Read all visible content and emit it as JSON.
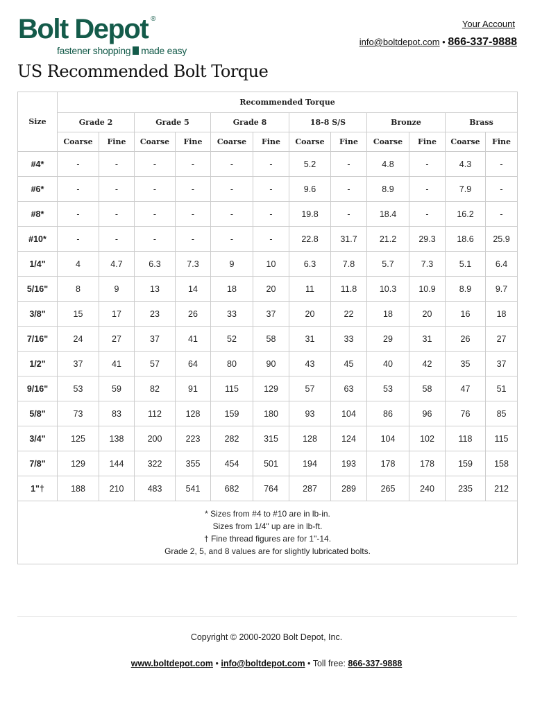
{
  "header": {
    "logo_name": "Bolt Depot",
    "logo_tagline_1": "fastener shopping",
    "logo_tagline_2": "made easy",
    "account": "Your Account",
    "email": "info@boltdepot.com",
    "sep": "•",
    "phone": "866-337-9888"
  },
  "title": "US Recommended Bolt Torque",
  "table": {
    "size_header": "Size",
    "group_header": "Recommended Torque",
    "materials": [
      "Grade 2",
      "Grade 5",
      "Grade 8",
      "18-8 S/S",
      "Bronze",
      "Brass"
    ],
    "sub": [
      "Coarse",
      "Fine"
    ],
    "rows": [
      {
        "size": "#4*",
        "v": [
          "-",
          "-",
          "-",
          "-",
          "-",
          "-",
          "5.2",
          "-",
          "4.8",
          "-",
          "4.3",
          "-"
        ]
      },
      {
        "size": "#6*",
        "v": [
          "-",
          "-",
          "-",
          "-",
          "-",
          "-",
          "9.6",
          "-",
          "8.9",
          "-",
          "7.9",
          "-"
        ]
      },
      {
        "size": "#8*",
        "v": [
          "-",
          "-",
          "-",
          "-",
          "-",
          "-",
          "19.8",
          "-",
          "18.4",
          "-",
          "16.2",
          "-"
        ]
      },
      {
        "size": "#10*",
        "v": [
          "-",
          "-",
          "-",
          "-",
          "-",
          "-",
          "22.8",
          "31.7",
          "21.2",
          "29.3",
          "18.6",
          "25.9"
        ]
      },
      {
        "size": "1/4\"",
        "v": [
          "4",
          "4.7",
          "6.3",
          "7.3",
          "9",
          "10",
          "6.3",
          "7.8",
          "5.7",
          "7.3",
          "5.1",
          "6.4"
        ]
      },
      {
        "size": "5/16\"",
        "v": [
          "8",
          "9",
          "13",
          "14",
          "18",
          "20",
          "11",
          "11.8",
          "10.3",
          "10.9",
          "8.9",
          "9.7"
        ]
      },
      {
        "size": "3/8\"",
        "v": [
          "15",
          "17",
          "23",
          "26",
          "33",
          "37",
          "20",
          "22",
          "18",
          "20",
          "16",
          "18"
        ]
      },
      {
        "size": "7/16\"",
        "v": [
          "24",
          "27",
          "37",
          "41",
          "52",
          "58",
          "31",
          "33",
          "29",
          "31",
          "26",
          "27"
        ]
      },
      {
        "size": "1/2\"",
        "v": [
          "37",
          "41",
          "57",
          "64",
          "80",
          "90",
          "43",
          "45",
          "40",
          "42",
          "35",
          "37"
        ]
      },
      {
        "size": "9/16\"",
        "v": [
          "53",
          "59",
          "82",
          "91",
          "115",
          "129",
          "57",
          "63",
          "53",
          "58",
          "47",
          "51"
        ]
      },
      {
        "size": "5/8\"",
        "v": [
          "73",
          "83",
          "112",
          "128",
          "159",
          "180",
          "93",
          "104",
          "86",
          "96",
          "76",
          "85"
        ]
      },
      {
        "size": "3/4\"",
        "v": [
          "125",
          "138",
          "200",
          "223",
          "282",
          "315",
          "128",
          "124",
          "104",
          "102",
          "118",
          "115"
        ]
      },
      {
        "size": "7/8\"",
        "v": [
          "129",
          "144",
          "322",
          "355",
          "454",
          "501",
          "194",
          "193",
          "178",
          "178",
          "159",
          "158"
        ]
      },
      {
        "size": "1\"†",
        "v": [
          "188",
          "210",
          "483",
          "541",
          "682",
          "764",
          "287",
          "289",
          "265",
          "240",
          "235",
          "212"
        ]
      }
    ],
    "notes": [
      "* Sizes from #4 to #10 are in lb-in.",
      "Sizes from 1/4\" up are in lb-ft.",
      "† Fine thread figures are for 1\"-14.",
      "Grade 2, 5, and 8 values are for slightly lubricated bolts."
    ]
  },
  "footer": {
    "copyright": "Copyright © 2000-2020 Bolt Depot, Inc.",
    "site": "www.boltdepot.com",
    "email": "info@boltdepot.com",
    "sep": "•",
    "tollfree_label": "Toll free:",
    "phone": "866-337-9888"
  }
}
